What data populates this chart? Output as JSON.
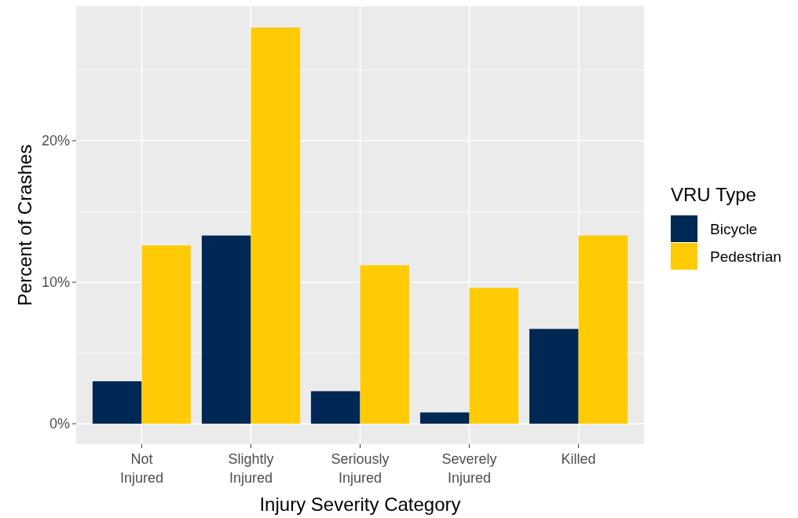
{
  "chart_data": {
    "type": "bar",
    "xlabel": "Injury Severity Category",
    "ylabel": "Percent of Crashes",
    "legend_title": "VRU Type",
    "categories": [
      "Not Injured",
      "Slightly Injured",
      "Seriously Injured",
      "Severely Injured",
      "Killed"
    ],
    "series": [
      {
        "name": "Bicycle",
        "color": "#002855",
        "values": [
          3.0,
          13.3,
          2.3,
          0.8,
          6.7
        ]
      },
      {
        "name": "Pedestrian",
        "color": "#ffcb05",
        "values": [
          12.6,
          28.0,
          11.2,
          9.6,
          13.3
        ]
      }
    ],
    "ylim": [
      -1.44,
      29.5
    ],
    "yticks": [
      {
        "value": 0,
        "label": "0%"
      },
      {
        "value": 10,
        "label": "10%"
      },
      {
        "value": 20,
        "label": "20%"
      }
    ],
    "grid": true,
    "legend": "right"
  }
}
